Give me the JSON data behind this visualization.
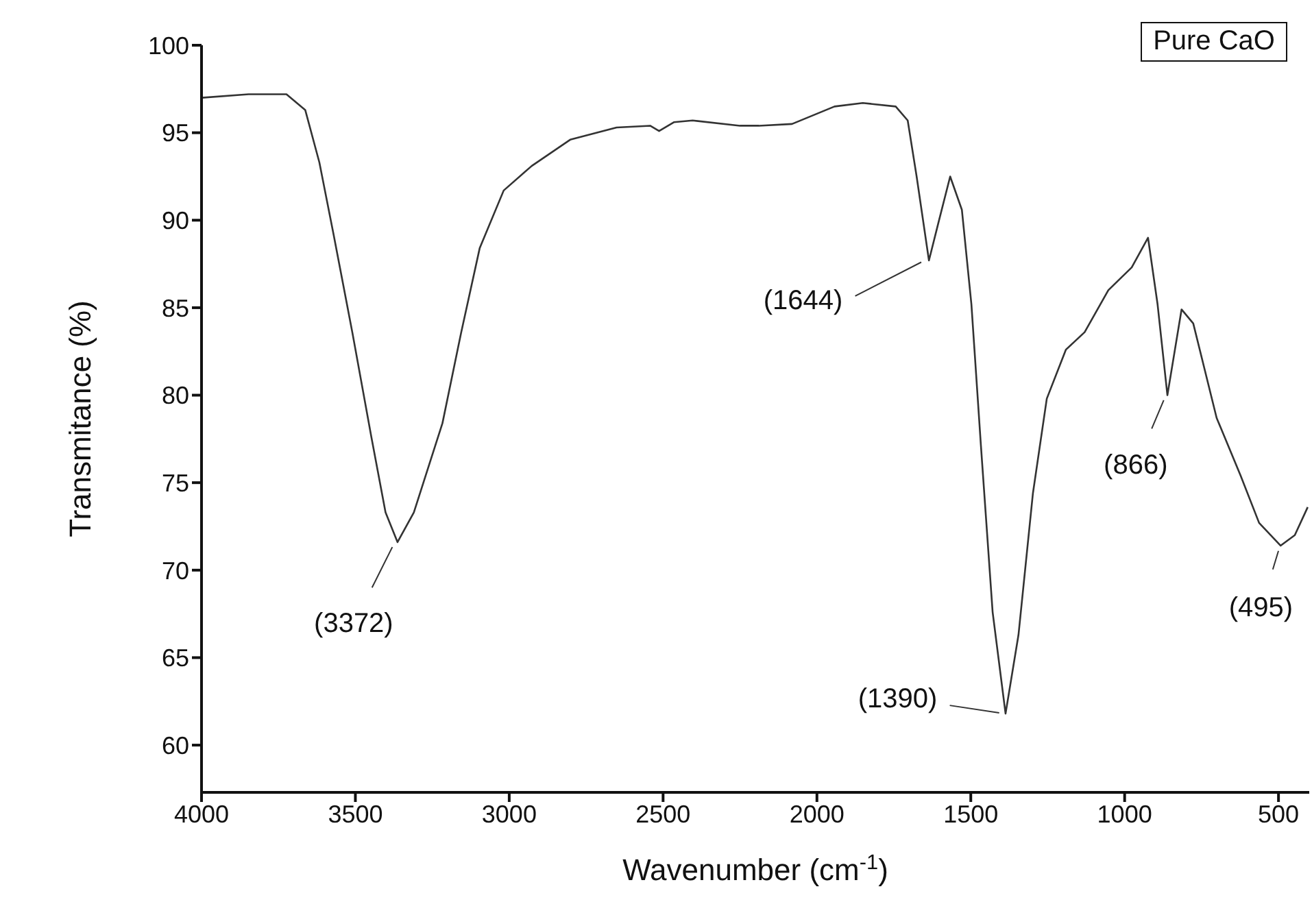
{
  "chart_data": {
    "type": "line",
    "xlabel": "Wavenumber (cm$^{-1}$)",
    "ylabel": "Transmitance (%)",
    "x": [
      4000,
      3847,
      3724,
      3663,
      3617,
      3571,
      3510,
      3448,
      3402,
      3363,
      3310,
      3217,
      3156,
      3096,
      3018,
      2927,
      2802,
      2651,
      2542,
      2513,
      2465,
      2404,
      2250,
      2189,
      2081,
      1943,
      1851,
      1744,
      1705,
      1676,
      1636,
      1606,
      1567,
      1529,
      1498,
      1467,
      1429,
      1387,
      1345,
      1298,
      1253,
      1191,
      1130,
      1053,
      977,
      924,
      893,
      861,
      815,
      777,
      701,
      623,
      563,
      493,
      447,
      405
    ],
    "series": [
      {
        "color": "#333333",
        "values": [
          97.0,
          97.2,
          97.2,
          96.3,
          93.3,
          89.2,
          83.6,
          77.6,
          73.3,
          71.6,
          73.3,
          78.4,
          83.6,
          88.4,
          91.7,
          93.1,
          94.6,
          95.3,
          95.4,
          95.1,
          95.6,
          95.7,
          95.4,
          95.4,
          95.5,
          96.5,
          96.7,
          96.5,
          95.7,
          92.5,
          87.7,
          89.8,
          92.5,
          90.6,
          85.2,
          77.1,
          67.6,
          61.8,
          66.3,
          74.4,
          79.8,
          82.6,
          83.6,
          86.0,
          87.3,
          89.0,
          85.2,
          80.0,
          84.9,
          84.1,
          78.7,
          75.4,
          72.7,
          71.4,
          72.0,
          73.6
        ]
      }
    ],
    "xlim": [
      4000,
      400
    ],
    "xticks": [
      4000,
      3500,
      3000,
      2500,
      2000,
      1500,
      1000,
      500
    ],
    "ylim": [
      57.3,
      100
    ],
    "yticks": [
      60,
      65,
      70,
      75,
      80,
      85,
      90,
      95,
      100
    ],
    "grid": false,
    "legend": false,
    "marker": "none",
    "line_style": "solid",
    "annotations": [
      "Pure CaO",
      {
        "text": "(3372)",
        "x": 3372,
        "y": 71.6
      },
      {
        "text": "(1644)",
        "x": 1644,
        "y": 87.7
      },
      {
        "text": "(1390)",
        "x": 1390,
        "y": 61.8
      },
      {
        "text": "(866)",
        "x": 866,
        "y": 80.0
      },
      {
        "text": "(495)",
        "x": 495,
        "y": 71.4
      }
    ]
  }
}
